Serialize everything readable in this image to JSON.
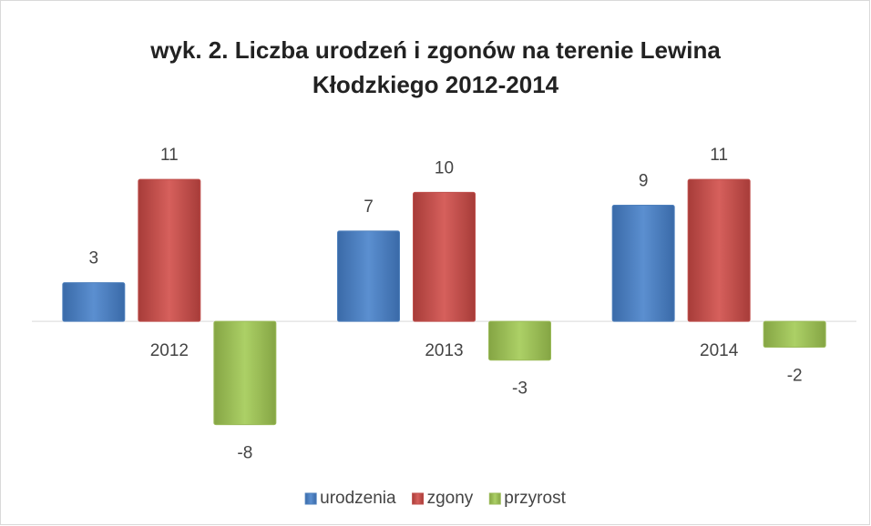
{
  "chart_data": {
    "type": "bar",
    "title": "wyk. 2. Liczba urodzeń i zgonów na terenie Lewina Kłodzkiego 2012-2014",
    "categories": [
      "2012",
      "2013",
      "2014"
    ],
    "series": [
      {
        "name": "urodzenia",
        "color": "#4f81bd",
        "values": [
          3,
          7,
          9
        ]
      },
      {
        "name": "zgony",
        "color": "#c0504d",
        "values": [
          11,
          10,
          11
        ]
      },
      {
        "name": "przyrost",
        "color": "#9bbb59",
        "values": [
          -8,
          -3,
          -2
        ]
      }
    ],
    "ylim": [
      -10,
      12
    ],
    "legend": "bottom"
  }
}
